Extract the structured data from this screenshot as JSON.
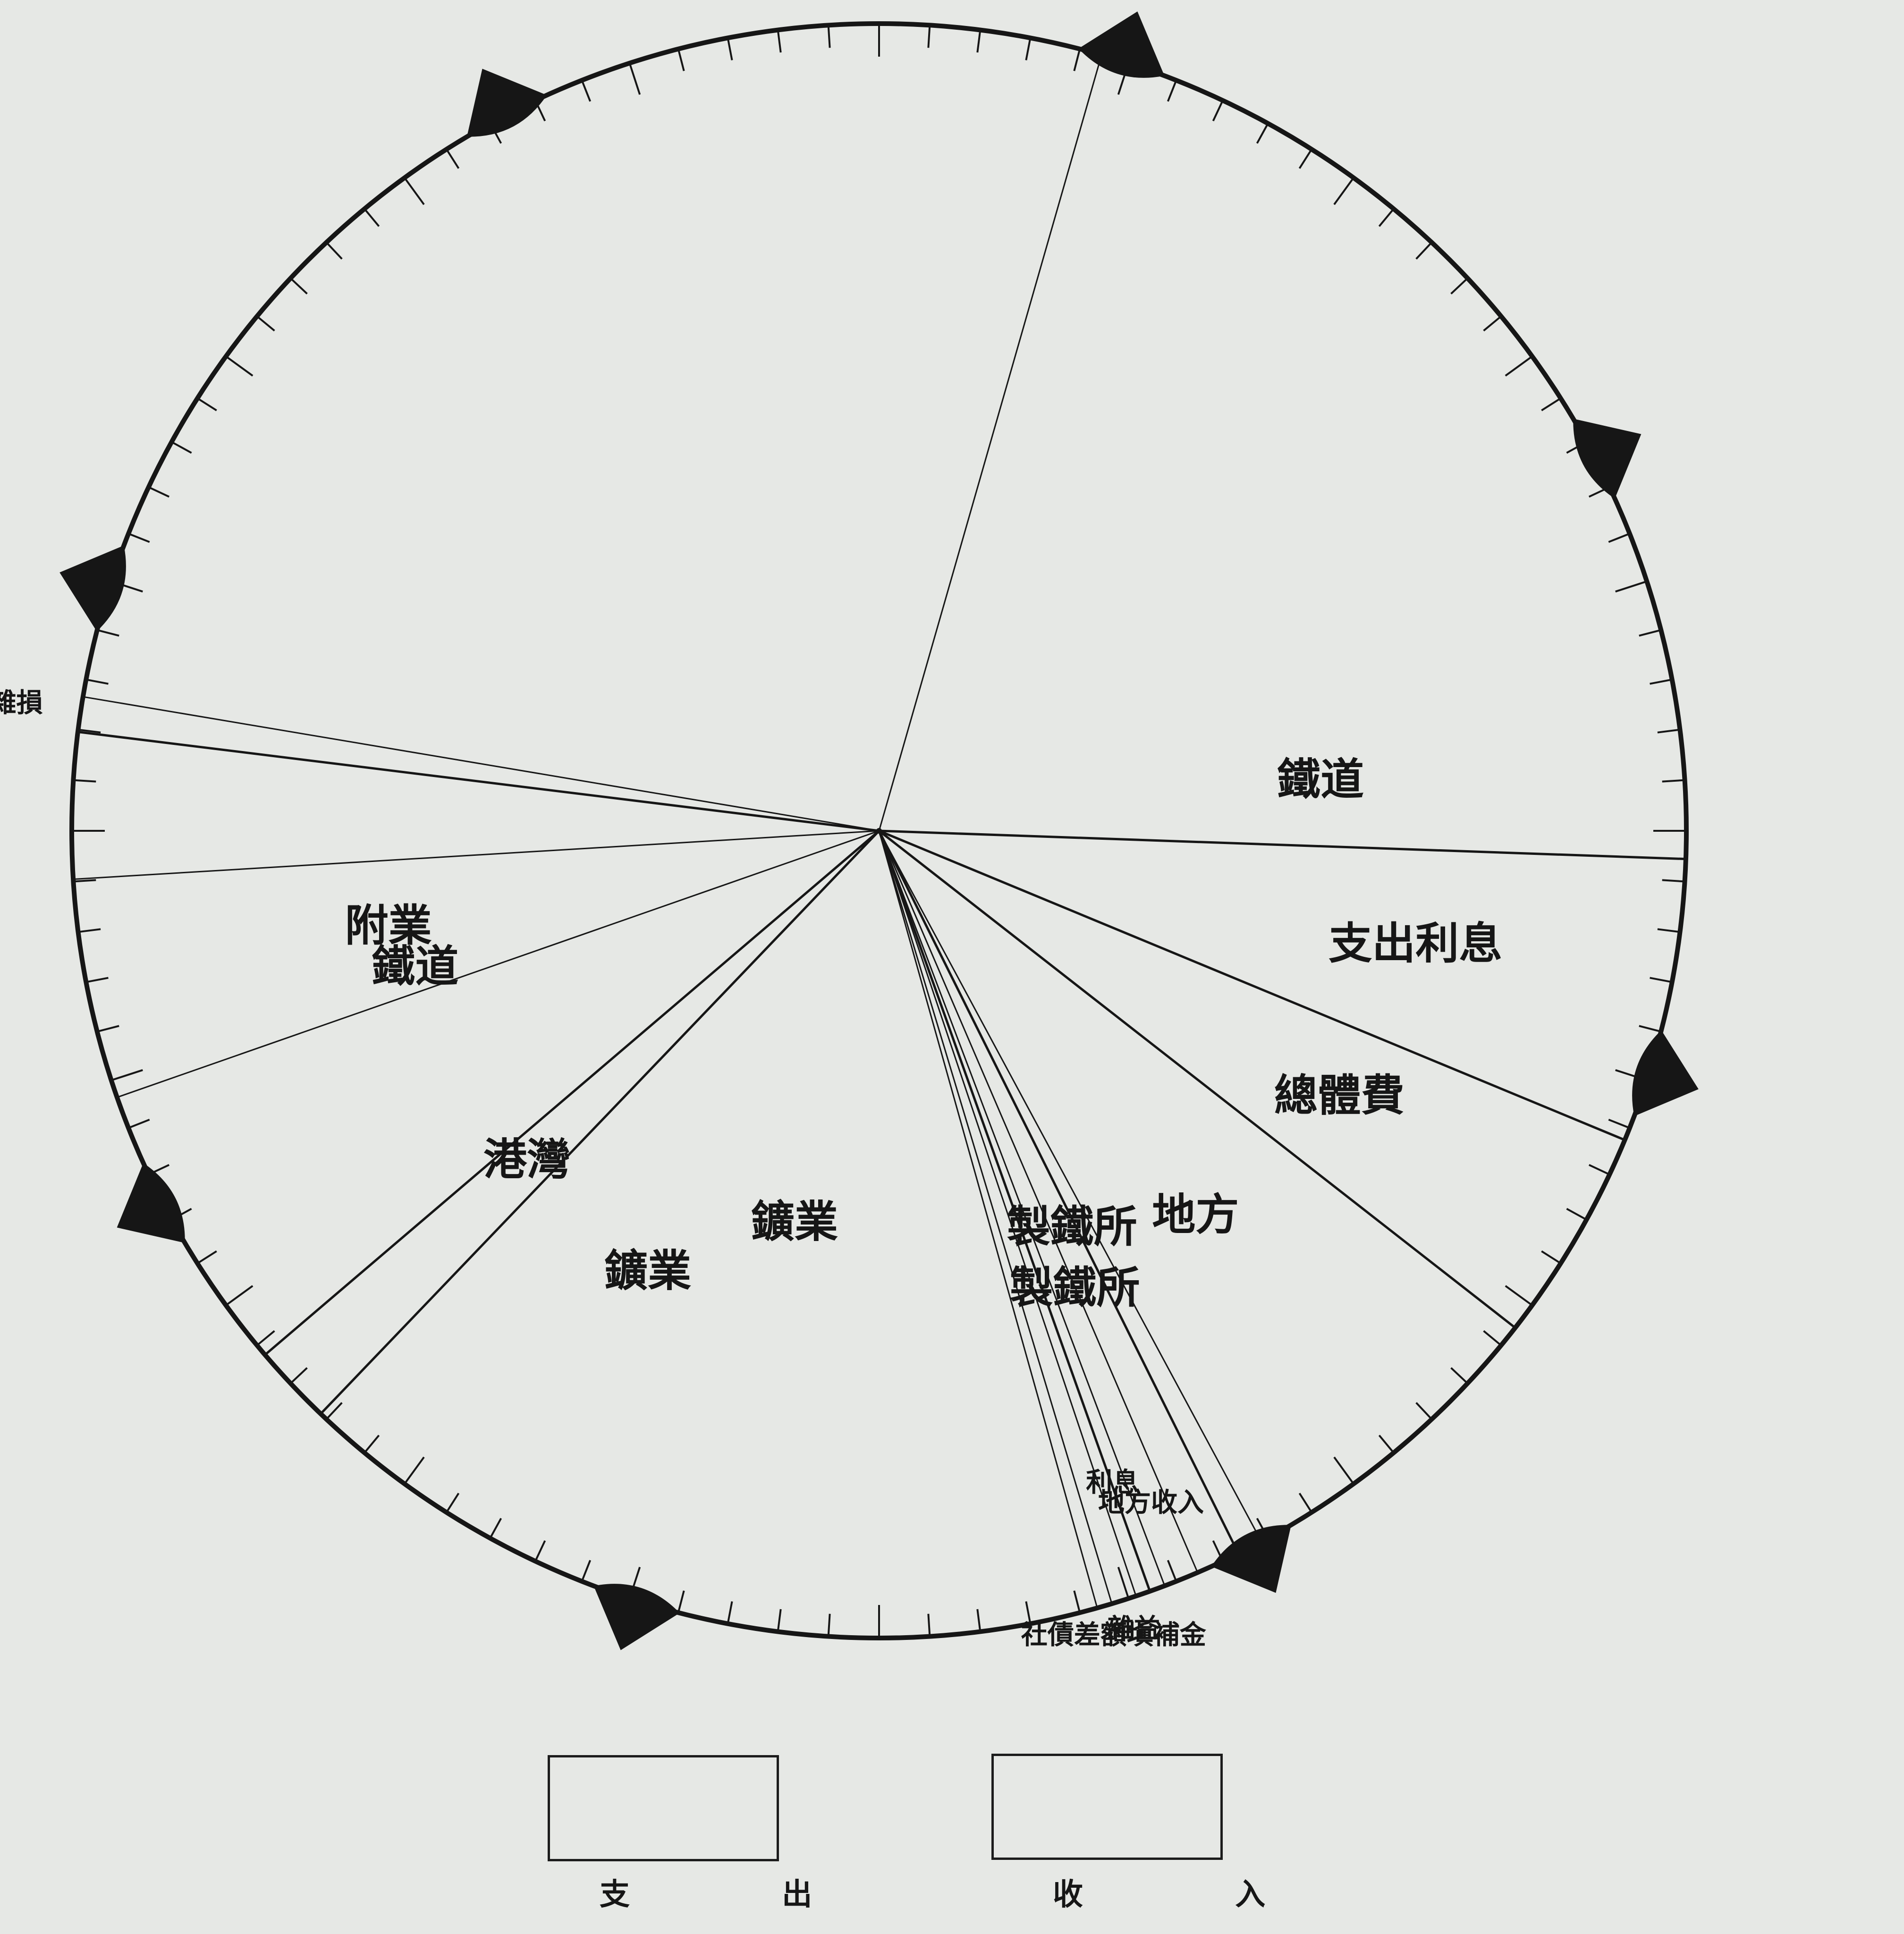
{
  "chart_data": {
    "type": "pie",
    "title": "",
    "charts": [
      {
        "name": "收入",
        "unit": "‰ of income",
        "slices": [
          {
            "label": "鐵道",
            "value": 377
          },
          {
            "label": "製鐵所",
            "value": 14
          },
          {
            "label": "地方收入",
            "value": 7
          },
          {
            "label": "利息",
            "value": 6
          },
          {
            "label": "雜益",
            "value": 5
          },
          {
            "label": "社債差額塡補金",
            "value": 3
          },
          {
            "label": "鑛業",
            "value": 240
          },
          {
            "label": "附業",
            "value": 44
          }
        ]
      },
      {
        "name": "支出",
        "unit": "‰ of expenditure",
        "slices": [
          {
            "label": "支出利息",
            "value": 57
          },
          {
            "label": "總體費",
            "value": 43
          },
          {
            "label": "地方",
            "value": 71
          },
          {
            "label": "製鐵所",
            "value": 19
          },
          {
            "label": "鑛業",
            "value": 176
          },
          {
            "label": "港灣",
            "value": 16
          },
          {
            "label": "鐵道",
            "value": 132
          },
          {
            "label": "雜損",
            "value": 7
          }
        ]
      }
    ],
    "legend": [
      {
        "label": "支 出",
        "chart": "支出"
      },
      {
        "label": "收 入",
        "chart": "收入"
      }
    ],
    "legend_position": "bottom"
  }
}
